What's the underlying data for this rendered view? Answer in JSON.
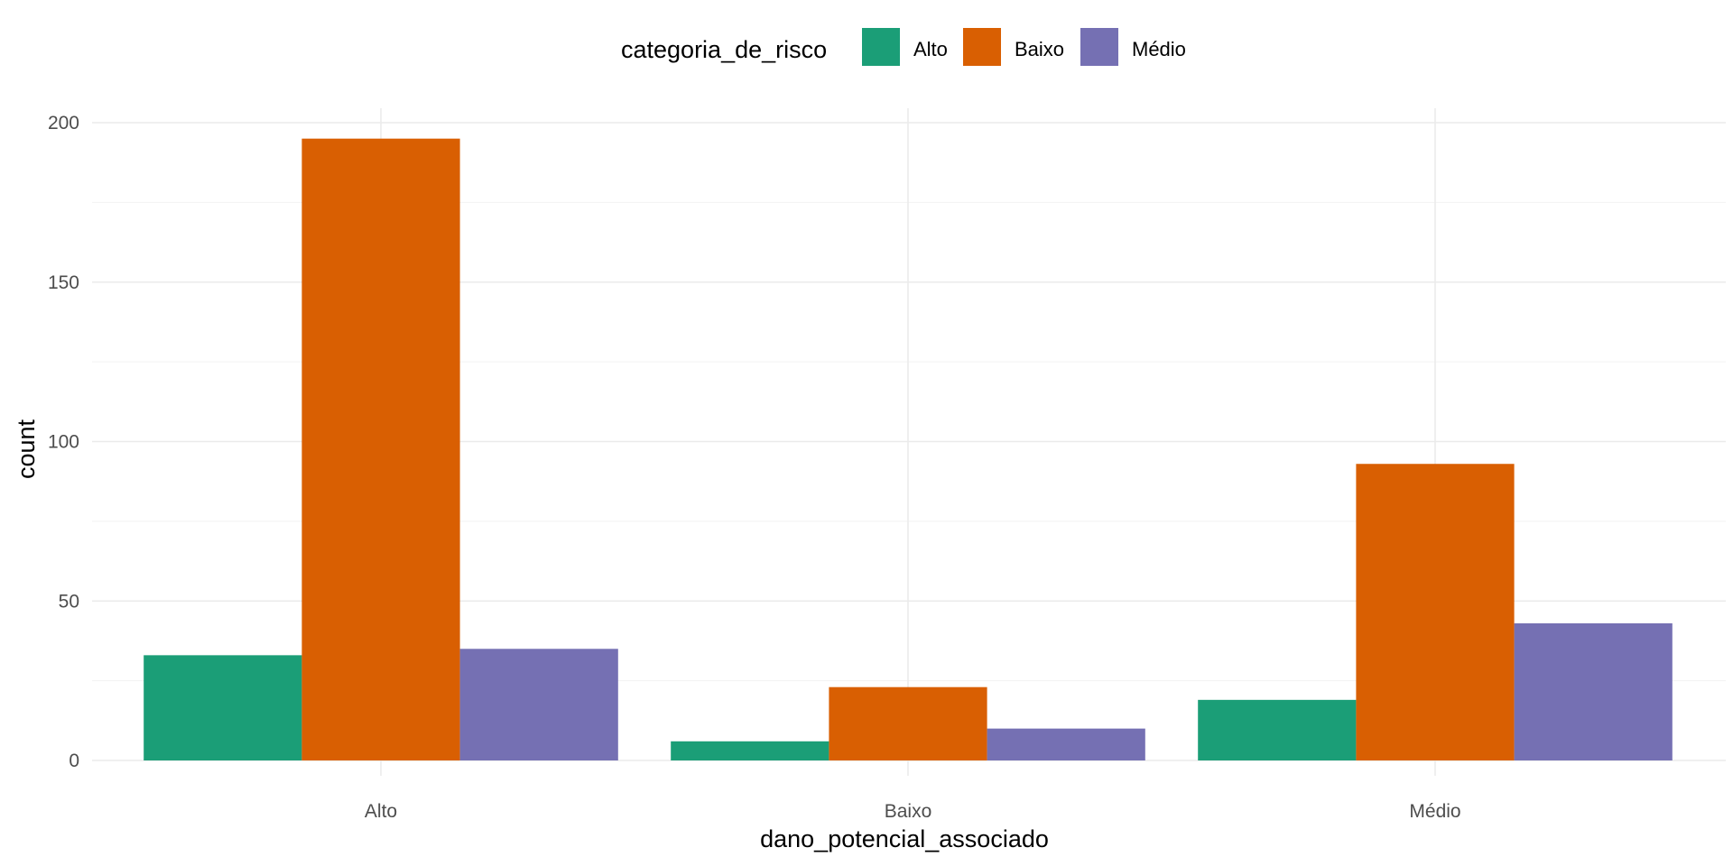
{
  "chart_data": {
    "type": "bar",
    "categories": [
      "Alto",
      "Baixo",
      "Médio"
    ],
    "series": [
      {
        "name": "Alto",
        "values": [
          33,
          6,
          19
        ],
        "color": "#1b9e77"
      },
      {
        "name": "Baixo",
        "values": [
          195,
          23,
          93
        ],
        "color": "#d95f02"
      },
      {
        "name": "Médio",
        "values": [
          35,
          10,
          43
        ],
        "color": "#7570b3"
      }
    ],
    "xlabel": "dano_potencial_associado",
    "ylabel": "count",
    "ylim": [
      0,
      200
    ],
    "yticks": [
      0,
      50,
      100,
      150,
      200
    ],
    "legend": {
      "title": "categoria_de_risco",
      "position": "top"
    },
    "grid": true
  }
}
